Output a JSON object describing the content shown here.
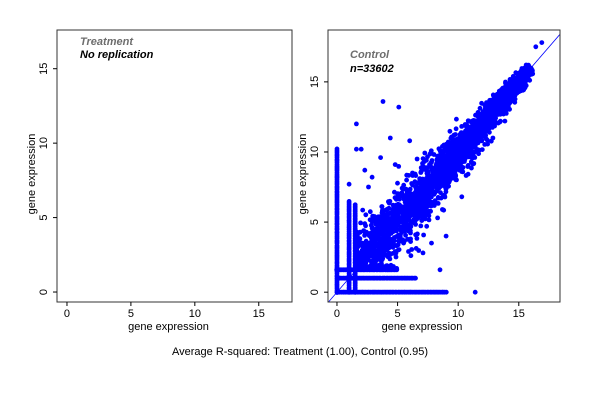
{
  "caption": "Average R-squared: Treatment (1.00), Control (0.95)",
  "colors": {
    "points": "#0000ff",
    "line": "#0000ff",
    "frame": "#333333",
    "annotation_gray": "#6e6e6e"
  },
  "chart_data": [
    {
      "type": "scatter",
      "title": "",
      "annotation_line1": "Treatment",
      "annotation_line2": "No replication",
      "xlabel": "gene expression",
      "ylabel": "gene expression",
      "xlim": [
        -0.78,
        17.6
      ],
      "ylim": [
        -0.67,
        17.6
      ],
      "xticks": [
        0,
        5,
        10,
        15
      ],
      "yticks": [
        0,
        5,
        10,
        15
      ],
      "grid": false,
      "points": []
    },
    {
      "type": "scatter",
      "title": "",
      "annotation_line1": "Control",
      "annotation_line2": "n=33602",
      "xlabel": "gene expression",
      "ylabel": "gene expression",
      "xlim": [
        -0.74,
        18.4
      ],
      "ylim": [
        -0.7,
        18.7
      ],
      "xticks": [
        0,
        5,
        10,
        15
      ],
      "yticks": [
        0,
        5,
        10,
        15
      ],
      "grid": false,
      "n": 33602,
      "reference_line": {
        "slope": 1,
        "intercept": 0
      },
      "dense_cloud": {
        "x_range": [
          1.5,
          16
        ],
        "spread_low": 2.4,
        "spread_high": 0.5,
        "count": 2500
      },
      "streaks": [
        {
          "axis": "x",
          "at": 0,
          "from": 0,
          "to": 10.2
        },
        {
          "axis": "x",
          "at": 1,
          "from": 0,
          "to": 6.5
        },
        {
          "axis": "x",
          "at": 1.5,
          "from": 0,
          "to": 6.3
        },
        {
          "axis": "y",
          "at": 0,
          "from": 0,
          "to": 9
        },
        {
          "axis": "y",
          "at": 1,
          "from": 0,
          "to": 6.5
        },
        {
          "axis": "y",
          "at": 1.6,
          "from": 0,
          "to": 5
        }
      ],
      "points": [
        [
          3.8,
          13.6
        ],
        [
          5.1,
          13.2
        ],
        [
          1.6,
          12
        ],
        [
          1.6,
          10.2
        ],
        [
          2,
          10.2
        ],
        [
          4.4,
          11
        ],
        [
          11.4,
          0
        ],
        [
          8.5,
          1.6
        ],
        [
          9,
          4
        ],
        [
          10.3,
          6.8
        ],
        [
          8.7,
          5.9
        ],
        [
          12.6,
          11.8
        ],
        [
          16.4,
          17.5
        ],
        [
          16.9,
          17.8
        ],
        [
          3.6,
          9.6
        ],
        [
          4.8,
          9.1
        ],
        [
          1,
          7.7
        ],
        [
          2.3,
          8.7
        ],
        [
          2.9,
          8.2
        ],
        [
          6,
          10.8
        ],
        [
          8.3,
          5.3
        ],
        [
          7.4,
          4.7
        ],
        [
          7.1,
          2.8
        ],
        [
          5.9,
          2.9
        ],
        [
          4.2,
          1.6
        ],
        [
          9.6,
          9.1
        ],
        [
          11.2,
          11.4
        ],
        [
          14.5,
          15.1
        ],
        [
          15.5,
          16
        ],
        [
          4.3,
          3.3
        ],
        [
          3.1,
          5.4
        ],
        [
          2.6,
          7.5
        ],
        [
          5.5,
          3.5
        ],
        [
          7.8,
          3.5
        ],
        [
          5,
          5.2
        ]
      ]
    }
  ]
}
